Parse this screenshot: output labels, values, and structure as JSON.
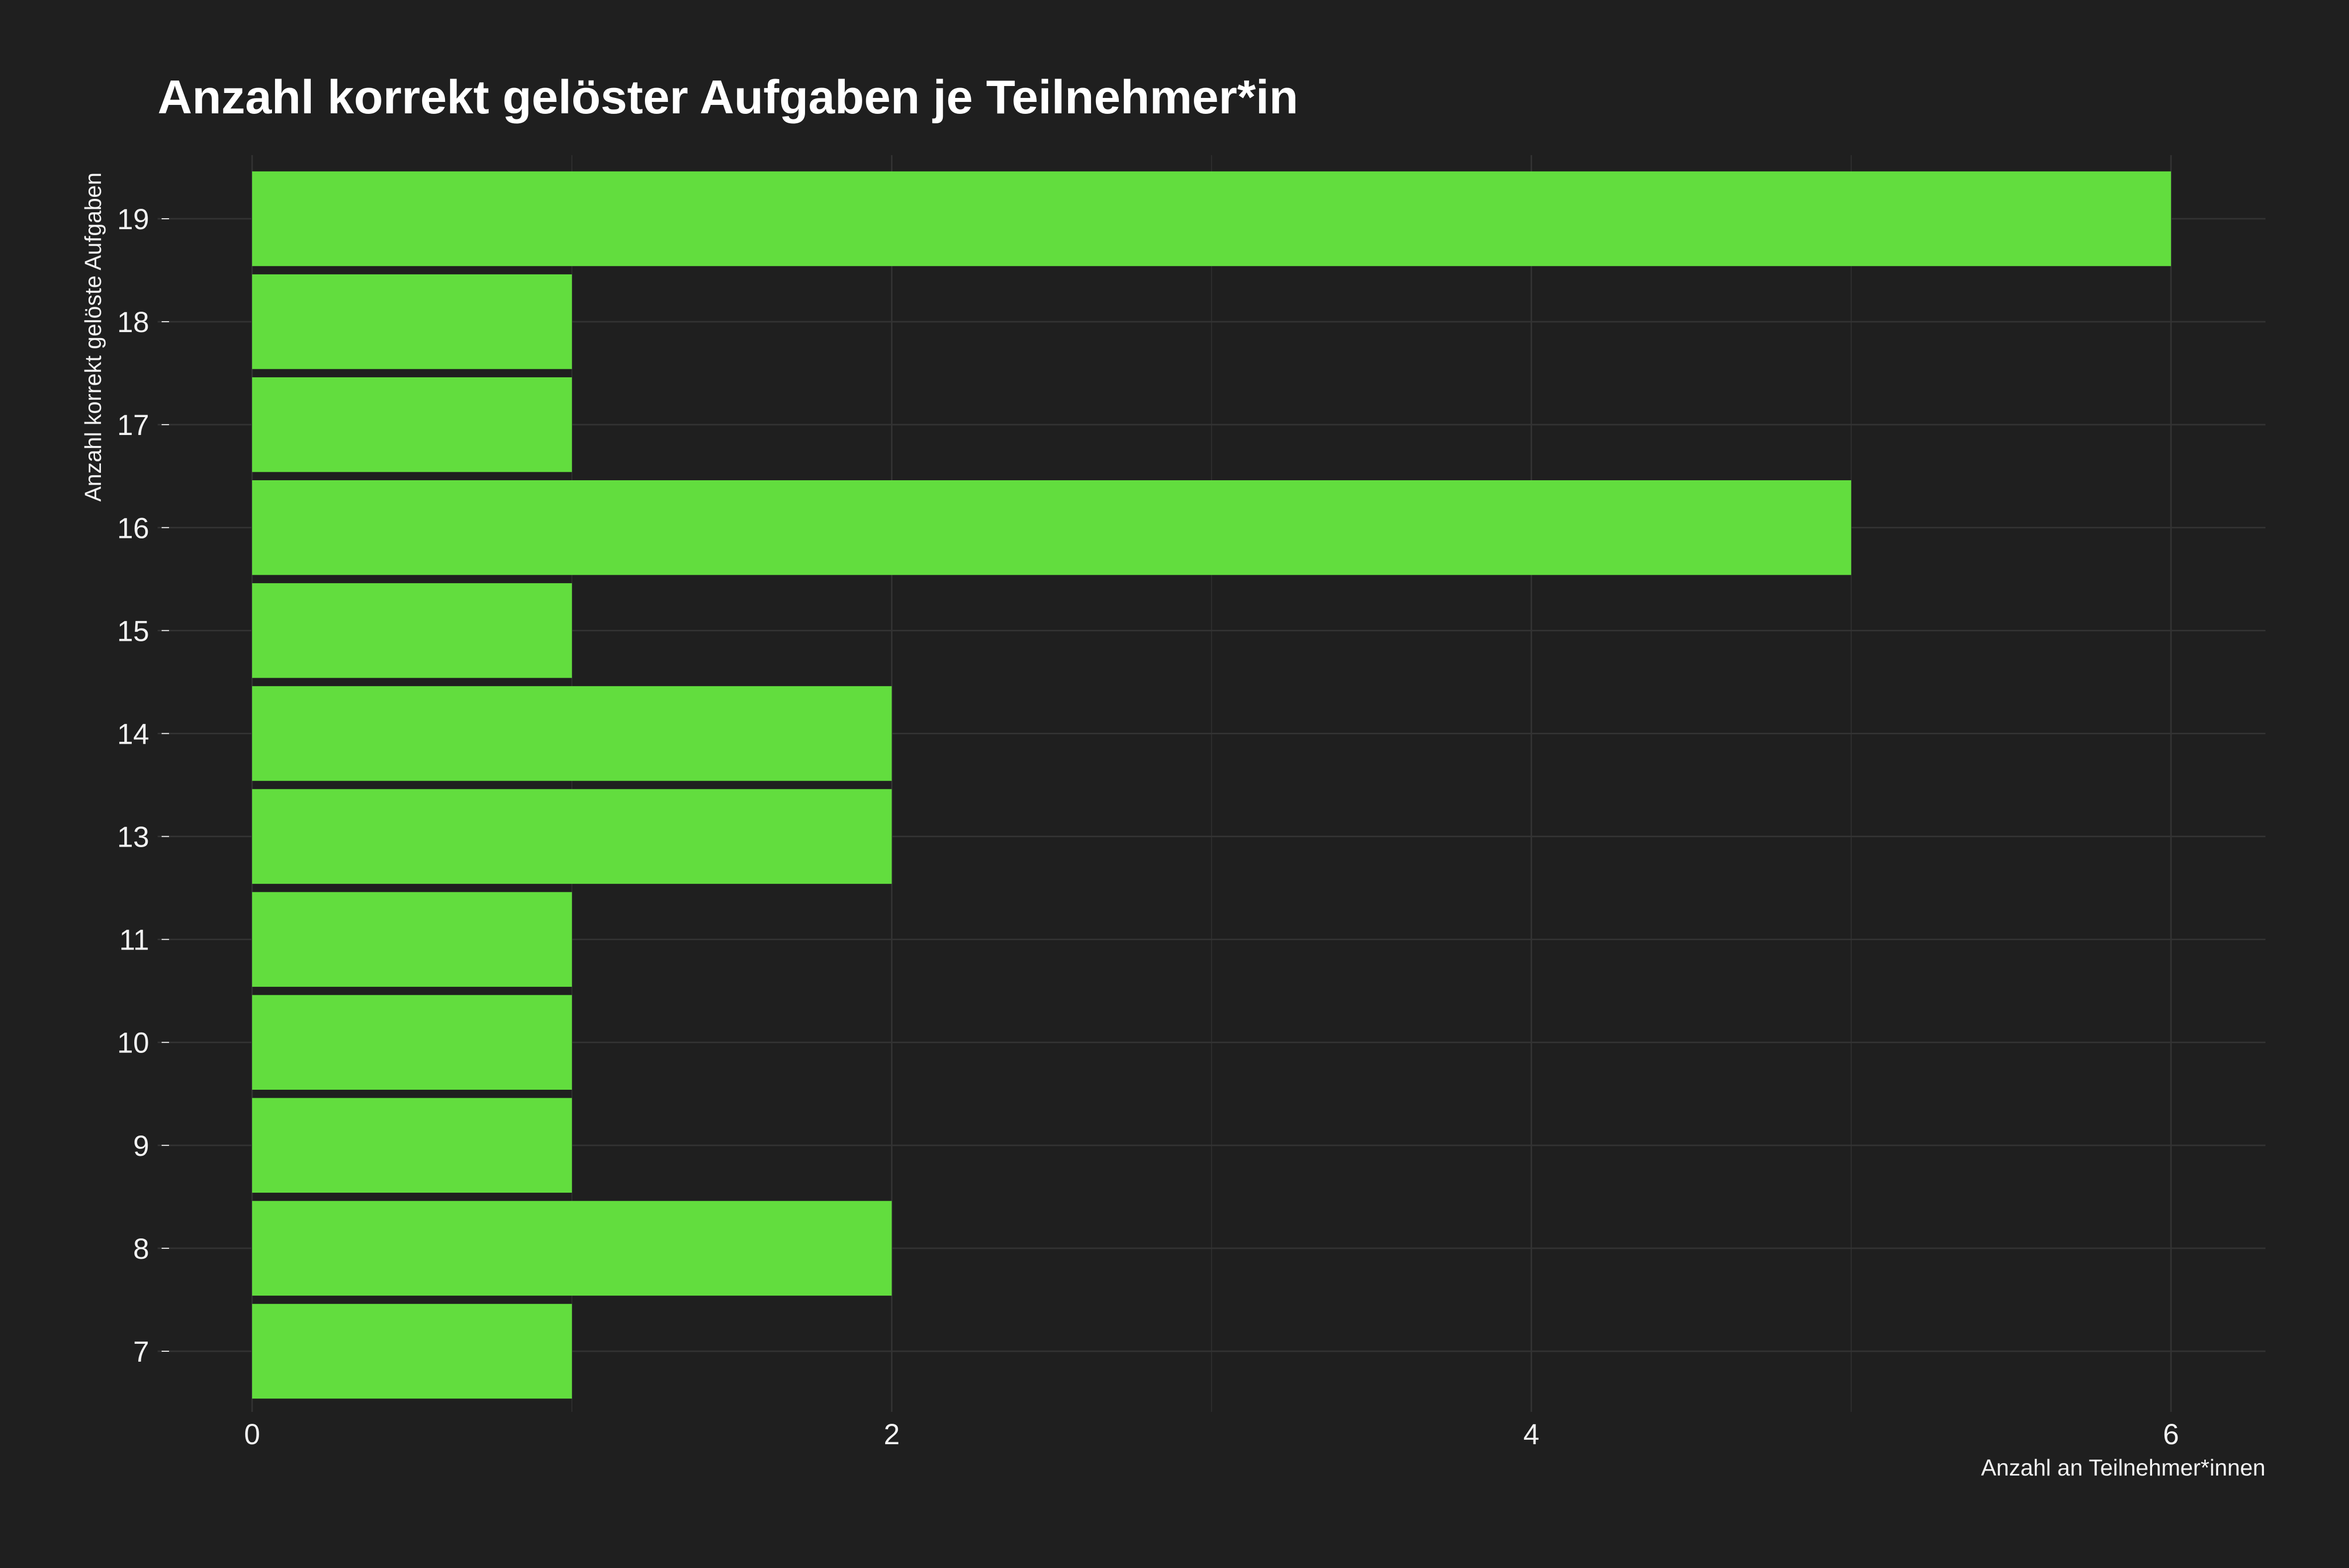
{
  "chart_data": {
    "type": "bar",
    "orientation": "horizontal",
    "title": "Anzahl korrekt gelöster Aufgaben je Teilnehmer*in",
    "xlabel": "Anzahl an Teilnehmer*innen",
    "ylabel": "Anzahl korrekt gelöste Aufgaben",
    "categories": [
      "7",
      "8",
      "9",
      "10",
      "11",
      "13",
      "14",
      "15",
      "16",
      "17",
      "18",
      "19"
    ],
    "values": [
      1,
      2,
      1,
      1,
      1,
      2,
      2,
      1,
      5,
      1,
      1,
      6
    ],
    "xlim": [
      0,
      6.3
    ],
    "x_ticks": [
      "0",
      "2",
      "4",
      "6"
    ],
    "grid": true,
    "legend": "none",
    "colors": {
      "background": "#1f1f1f",
      "bar": "#62dd3e",
      "grid": "#333333",
      "text": "#f2f2f2"
    }
  }
}
